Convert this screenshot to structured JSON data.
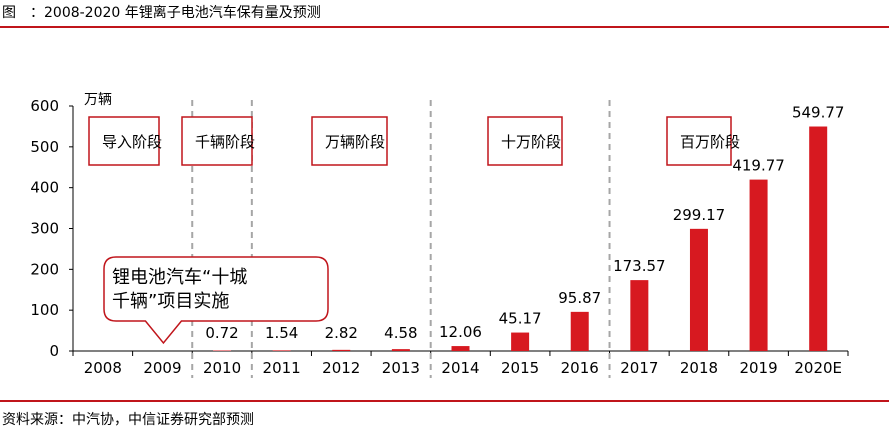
{
  "header": {
    "label": "图",
    "separator": "：",
    "title": "2008-2020 年锂离子电池汽车保有量及预测"
  },
  "footer": {
    "source": "资料来源：中汽协，中信证券研究部预测"
  },
  "colors": {
    "bar": "#d71920",
    "rule": "#c0151b",
    "stage_box": "#c0151b",
    "divider": "#a6a6a6"
  },
  "chart_data": {
    "type": "bar",
    "unit_label": "万辆",
    "categories": [
      "2008",
      "2009",
      "2010",
      "2011",
      "2012",
      "2013",
      "2014",
      "2015",
      "2016",
      "2017",
      "2018",
      "2019",
      "2020E"
    ],
    "values": [
      0,
      0,
      0.72,
      1.54,
      2.82,
      4.58,
      12.06,
      45.17,
      95.87,
      173.57,
      299.17,
      419.77,
      549.77
    ],
    "data_labels": [
      "",
      "",
      "0.72",
      "1.54",
      "2.82",
      "4.58",
      "12.06",
      "45.17",
      "95.87",
      "173.57",
      "299.17",
      "419.77",
      "549.77"
    ],
    "ylim": [
      0,
      600
    ],
    "yticks": [
      0,
      100,
      200,
      300,
      400,
      500,
      600
    ],
    "grid": false,
    "stages": [
      {
        "label": "导入阶段",
        "start": 0,
        "end": 1
      },
      {
        "label": "千辆阶段",
        "start": 2,
        "end": 2
      },
      {
        "label": "万辆阶段",
        "start": 3,
        "end": 5
      },
      {
        "label": "十万阶段",
        "start": 6,
        "end": 8
      },
      {
        "label": "百万阶段",
        "start": 9,
        "end": 12
      }
    ],
    "dividers_after": [
      1,
      2,
      5,
      8
    ],
    "annotation": {
      "lines": [
        "锂电池汽车“十城",
        "千辆”项目实施"
      ],
      "points_to": 1
    }
  }
}
